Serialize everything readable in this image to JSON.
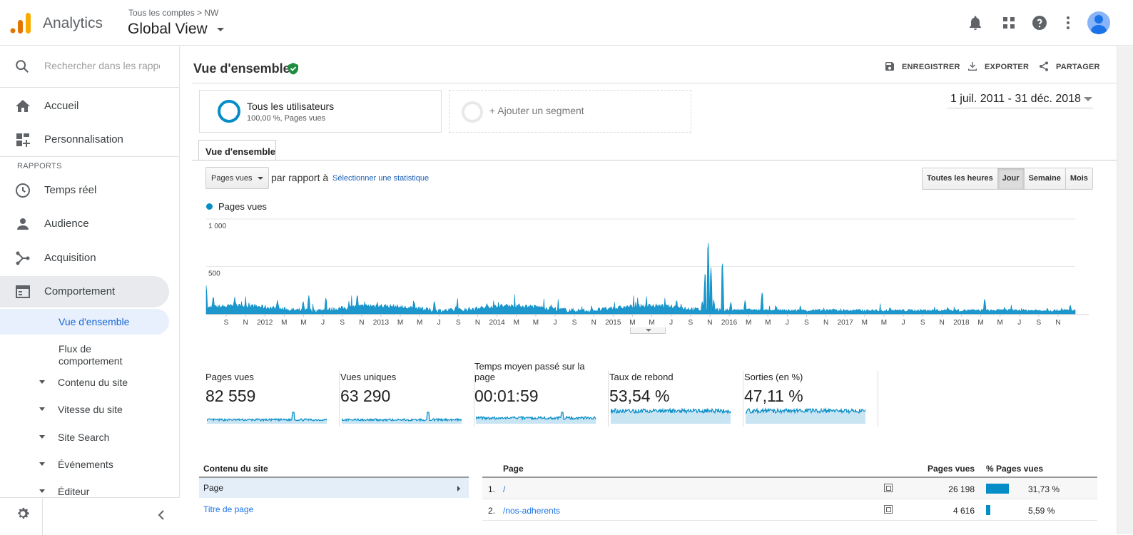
{
  "header": {
    "app_name": "Analytics",
    "breadcrumb": "Tous les comptes > NW",
    "view_name": "Global View",
    "icons": [
      "bell-icon",
      "apps-grid-icon",
      "help-icon",
      "more-vert-icon",
      "avatar"
    ]
  },
  "sidebar": {
    "search_placeholder": "Rechercher dans les rapport",
    "home_label": "Accueil",
    "custom_label": "Personnalisation",
    "section_label": "RAPPORTS",
    "items": [
      {
        "label": "Temps réel",
        "icon": "clock-icon"
      },
      {
        "label": "Audience",
        "icon": "person-icon"
      },
      {
        "label": "Acquisition",
        "icon": "acquisition-icon"
      },
      {
        "label": "Comportement",
        "icon": "behavior-icon"
      }
    ],
    "sub_active": "Vue d'ensemble",
    "sub_flow": "Flux de comportement",
    "tree": [
      "Contenu du site",
      "Vitesse du site",
      "Site Search",
      "Événements",
      "Éditeur"
    ]
  },
  "main": {
    "title": "Vue d'ensemble",
    "actions": {
      "save": "ENREGISTRER",
      "export": "EXPORTER",
      "share": "PARTAGER"
    },
    "segment": {
      "title": "Tous les utilisateurs",
      "subtitle": "100,00 %, Pages vues"
    },
    "add_segment": "+ Ajouter un segment",
    "date_range": "1 juil. 2011 - 31 déc. 2018",
    "tab": "Vue d'ensemble",
    "metric_select": "Pages vues",
    "vs_label": "par rapport à",
    "vs_link": "Sélectionner une statistique",
    "granularity": [
      "Toutes les heures",
      "Jour",
      "Semaine",
      "Mois"
    ],
    "granularity_selected": "Jour",
    "legend": "Pages vues"
  },
  "chart_data": {
    "type": "area",
    "series": [
      {
        "name": "Pages vues",
        "color": "#058dc7"
      }
    ],
    "yticks": [
      "1 000",
      "500"
    ],
    "ylim": [
      0,
      1000
    ],
    "xticks": [
      "S",
      "N",
      "2012",
      "M",
      "M",
      "J",
      "S",
      "N",
      "2013",
      "M",
      "M",
      "J",
      "S",
      "N",
      "2014",
      "M",
      "M",
      "J",
      "S",
      "N",
      "2015",
      "M",
      "M",
      "J",
      "S",
      "N",
      "2016",
      "M",
      "M",
      "J",
      "S",
      "N",
      "2017",
      "M",
      "M",
      "J",
      "S",
      "N",
      "2018",
      "M",
      "M",
      "J",
      "S",
      "N"
    ],
    "points": [
      [
        0,
        300
      ],
      [
        0.3,
        60
      ],
      [
        2.5,
        200
      ],
      [
        3,
        100
      ],
      [
        10,
        180
      ],
      [
        15,
        120
      ],
      [
        25,
        150
      ],
      [
        34,
        140
      ],
      [
        36,
        200
      ],
      [
        42,
        180
      ],
      [
        53,
        220
      ],
      [
        60,
        130
      ],
      [
        73,
        130
      ],
      [
        80,
        140
      ],
      [
        88,
        110
      ],
      [
        100,
        90
      ],
      [
        113,
        75
      ],
      [
        121,
        100
      ],
      [
        140,
        80
      ],
      [
        165,
        160
      ],
      [
        174,
        140
      ],
      [
        175,
        480
      ],
      [
        176,
        840
      ],
      [
        177,
        520
      ],
      [
        178,
        150
      ],
      [
        181,
        600
      ],
      [
        184,
        130
      ],
      [
        189,
        150
      ],
      [
        195,
        250
      ],
      [
        200,
        80
      ],
      [
        220,
        60
      ],
      [
        240,
        60
      ],
      [
        260,
        70
      ],
      [
        273,
        170
      ],
      [
        280,
        70
      ],
      [
        295,
        60
      ],
      [
        300,
        60
      ],
      [
        303,
        100
      ],
      [
        305,
        60
      ]
    ]
  },
  "metrics": [
    {
      "title": "Pages vues",
      "value": "82 559"
    },
    {
      "title": "Vues uniques",
      "value": "63 290"
    },
    {
      "title": "Temps moyen passé sur la page",
      "value": "00:01:59"
    },
    {
      "title": "Taux de rebond",
      "value": "53,54 %"
    },
    {
      "title": "Sorties (en %)",
      "value": "47,11 %"
    }
  ],
  "content_table": {
    "header": "Contenu du site",
    "selected": "Page",
    "link": "Titre de page"
  },
  "pages_table": {
    "headers": {
      "page": "Page",
      "views": "Pages vues",
      "pct": "% Pages vues"
    },
    "rows": [
      {
        "n": "1.",
        "page": "/",
        "views": "26 198",
        "pct": "31,73 %",
        "share": 31.73
      },
      {
        "n": "2.",
        "page": "/nos-adherents",
        "views": "4 616",
        "pct": "5,59 %",
        "share": 5.59
      }
    ]
  }
}
